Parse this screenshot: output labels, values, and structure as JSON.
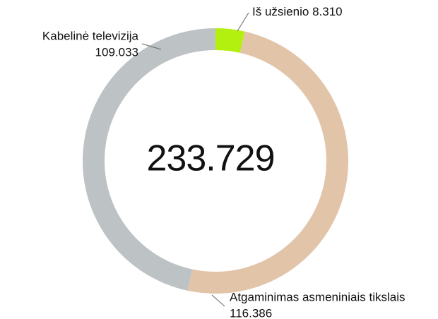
{
  "chart_data": {
    "type": "donut",
    "categories": [
      "Iš užsienio",
      "Atgaminimas asmeniniais tikslais",
      "Kabelinė televizija"
    ],
    "values": [
      8310,
      116386,
      109033
    ],
    "value_labels": [
      "8.310",
      "116.386",
      "109.033"
    ],
    "colors": [
      "#b4f00f",
      "#e2c4a9",
      "#bdc2c5"
    ],
    "total": {
      "value": 233729,
      "label": "233.729"
    }
  }
}
